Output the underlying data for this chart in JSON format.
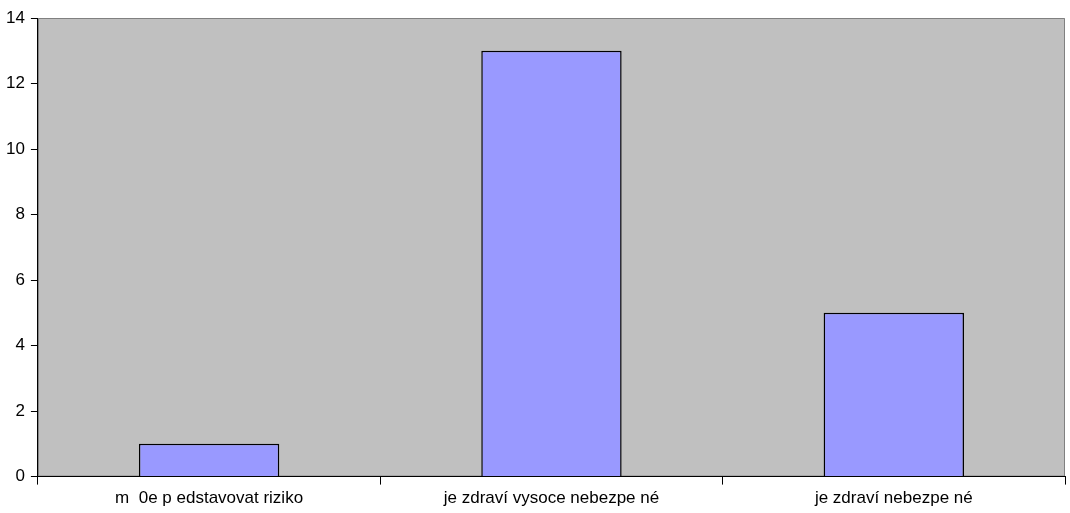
{
  "chart_data": {
    "type": "bar",
    "categories": [
      "m  0e p edstavovat riziko",
      "je zdraví vysoce nebezpe né",
      "je zdraví nebezpe né"
    ],
    "values": [
      1,
      13,
      5
    ],
    "color": "#9999ff",
    "ylim": [
      0,
      14
    ],
    "yticks": [
      0,
      2,
      4,
      6,
      8,
      10,
      12,
      14
    ],
    "grid": false,
    "legend": false
  }
}
